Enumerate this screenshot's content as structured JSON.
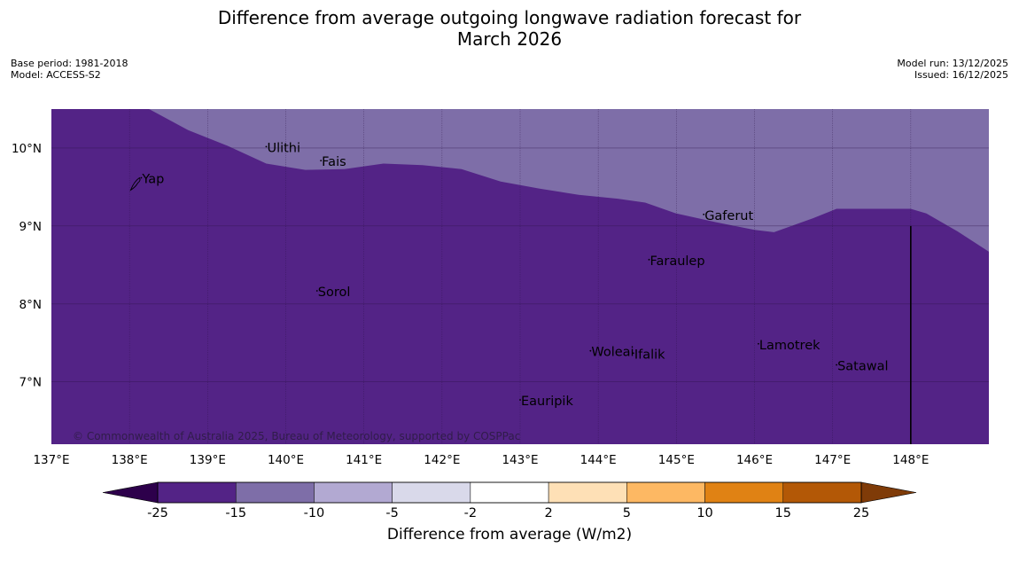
{
  "title_line1": "Difference from average outgoing longwave radiation forecast for",
  "title_line2": "March 2026",
  "base_period": "Base period: 1981-2018",
  "model": "Model: ACCESS-S2",
  "model_run": "Model run: 13/12/2025",
  "issued": "Issued: 16/12/2025",
  "copyright": "© Commonwealth of Australia 2025, Bureau of Meteorology, supported by COSPPac",
  "colors": {
    "dark_purple": "#532386",
    "mid_purple": "#7e6ea8",
    "light_purple": "#b2a9d2",
    "pale_lavender": "#d9d9ea",
    "white": "#ffffff",
    "pale_orange": "#fee0b6",
    "light_orange": "#fdb863",
    "orange": "#e08214",
    "dark_orange": "#b35806",
    "extend_low": "#2d004b",
    "extend_high": "#7f3b08"
  },
  "map": {
    "lon_range": [
      137,
      149
    ],
    "lat_range": [
      6.2,
      10.5
    ],
    "lon_ticks": [
      {
        "value": 137,
        "label": "137°E"
      },
      {
        "value": 138,
        "label": "138°E"
      },
      {
        "value": 139,
        "label": "139°E"
      },
      {
        "value": 140,
        "label": "140°E"
      },
      {
        "value": 141,
        "label": "141°E"
      },
      {
        "value": 142,
        "label": "142°E"
      },
      {
        "value": 143,
        "label": "143°E"
      },
      {
        "value": 144,
        "label": "144°E"
      },
      {
        "value": 145,
        "label": "145°E"
      },
      {
        "value": 146,
        "label": "146°E"
      },
      {
        "value": 147,
        "label": "147°E"
      },
      {
        "value": 148,
        "label": "148°E"
      }
    ],
    "lat_ticks": [
      {
        "value": 10,
        "label": "10°N"
      },
      {
        "value": 9,
        "label": "9°N"
      },
      {
        "value": 8,
        "label": "8°N"
      },
      {
        "value": 7,
        "label": "7°N"
      }
    ],
    "regions": [
      {
        "name": "-25 to -15 W/m2",
        "color_key": "dark_purple"
      },
      {
        "name": "-15 to -10 W/m2",
        "color_key": "mid_purple",
        "boundary": [
          [
            138.25,
            10.5
          ],
          [
            138.75,
            10.23
          ],
          [
            139.25,
            10.03
          ],
          [
            139.75,
            9.8
          ],
          [
            140.25,
            9.72
          ],
          [
            140.75,
            9.73
          ],
          [
            141.25,
            9.8
          ],
          [
            141.75,
            9.78
          ],
          [
            142.25,
            9.73
          ],
          [
            142.75,
            9.57
          ],
          [
            143.25,
            9.48
          ],
          [
            143.75,
            9.4
          ],
          [
            144.25,
            9.35
          ],
          [
            144.6,
            9.3
          ],
          [
            145.0,
            9.16
          ],
          [
            145.5,
            9.05
          ],
          [
            146.0,
            8.95
          ],
          [
            146.25,
            8.92
          ],
          [
            146.75,
            9.1
          ],
          [
            147.05,
            9.22
          ],
          [
            147.6,
            9.22
          ],
          [
            148.0,
            9.22
          ],
          [
            148.2,
            9.16
          ],
          [
            148.6,
            8.93
          ],
          [
            149,
            8.67
          ]
        ]
      }
    ],
    "places": [
      {
        "name": "Ulithi",
        "lon": 139.75,
        "lat": 9.95
      },
      {
        "name": "Fais",
        "lon": 140.45,
        "lat": 9.77
      },
      {
        "name": "Yap",
        "lon": 138.15,
        "lat": 9.55
      },
      {
        "name": "Gaferut",
        "lon": 145.35,
        "lat": 9.08
      },
      {
        "name": "Faraulep",
        "lon": 144.65,
        "lat": 8.5
      },
      {
        "name": "Sorol",
        "lon": 140.4,
        "lat": 8.1
      },
      {
        "name": "Lamotrek",
        "lon": 146.05,
        "lat": 7.42
      },
      {
        "name": "Woleai",
        "lon": 143.9,
        "lat": 7.33
      },
      {
        "name": "Ifalik",
        "lon": 144.45,
        "lat": 7.3
      },
      {
        "name": "Satawal",
        "lon": 147.05,
        "lat": 7.15
      },
      {
        "name": "Eauripik",
        "lon": 143.0,
        "lat": 6.7
      }
    ],
    "meridian_line": {
      "lon": 148.0,
      "lat_from": 9.0,
      "lat_to": 6.2
    }
  },
  "colorbar": {
    "label": "Difference from average (W/m2)",
    "ticks": [
      "-25",
      "-15",
      "-10",
      "-5",
      "-2",
      "2",
      "5",
      "10",
      "15",
      "25"
    ],
    "bins": [
      "dark_purple",
      "mid_purple",
      "light_purple",
      "pale_lavender",
      "white",
      "white",
      "pale_orange",
      "light_orange",
      "orange",
      "dark_orange"
    ]
  }
}
